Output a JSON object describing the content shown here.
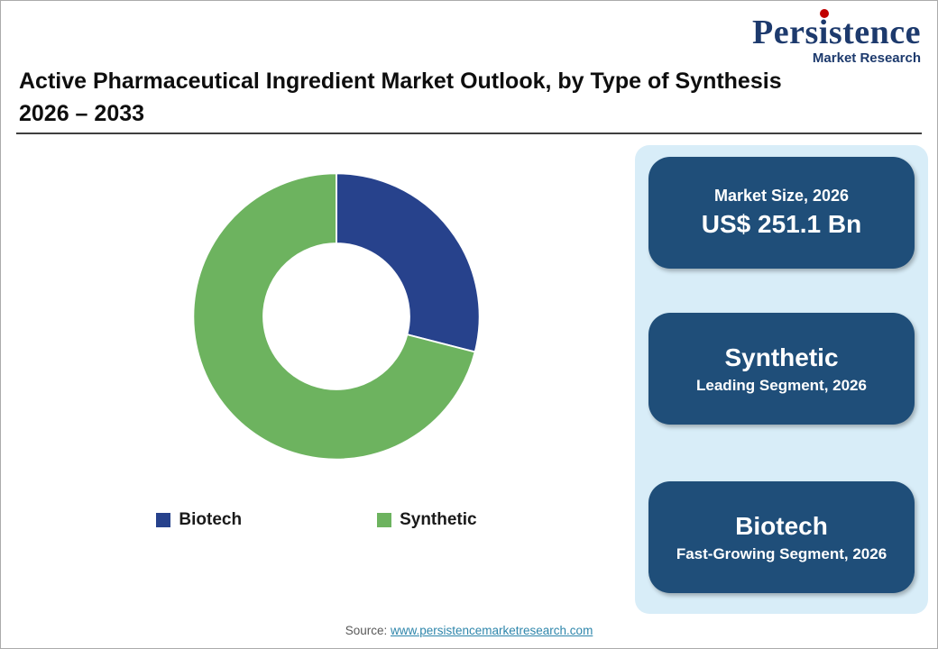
{
  "logo": {
    "name": "Persistence",
    "tagline": "Market Research"
  },
  "header": {
    "title_line1": "Active Pharmaceutical Ingredient Market Outlook, by Type of Synthesis",
    "title_line2": "2026 – 2033"
  },
  "chart_data": {
    "type": "pie",
    "subtype": "donut",
    "title": "Active Pharmaceutical Ingredient Market Outlook, by Type of Synthesis 2026 – 2033",
    "categories": [
      "Biotech",
      "Synthetic"
    ],
    "values": [
      29,
      71
    ],
    "unit": "% (estimated from arc angles)",
    "colors": [
      "#27428c",
      "#6db35f"
    ],
    "start_angle_deg": 0,
    "direction": "clockwise",
    "inner_radius_ratio": 0.51,
    "legend_position": "bottom",
    "data_labels": false
  },
  "panel": {
    "boxes": [
      {
        "line1": "Market Size, 2026",
        "line2": "US$ 251.1 Bn"
      },
      {
        "line1": "Synthetic",
        "line2": "Leading Segment, 2026"
      },
      {
        "line1": "Biotech",
        "line2": "Fast-Growing Segment, 2026"
      }
    ]
  },
  "footer": {
    "source_label": "Source:",
    "source_link": "www.persistencemarketresearch.com"
  },
  "colors": {
    "accent_navy": "#1d3a6d",
    "box_bg": "#1f4e79",
    "panel_bg": "#d8edf8",
    "link": "#2e86ab",
    "logo_dot": "#c00000"
  }
}
